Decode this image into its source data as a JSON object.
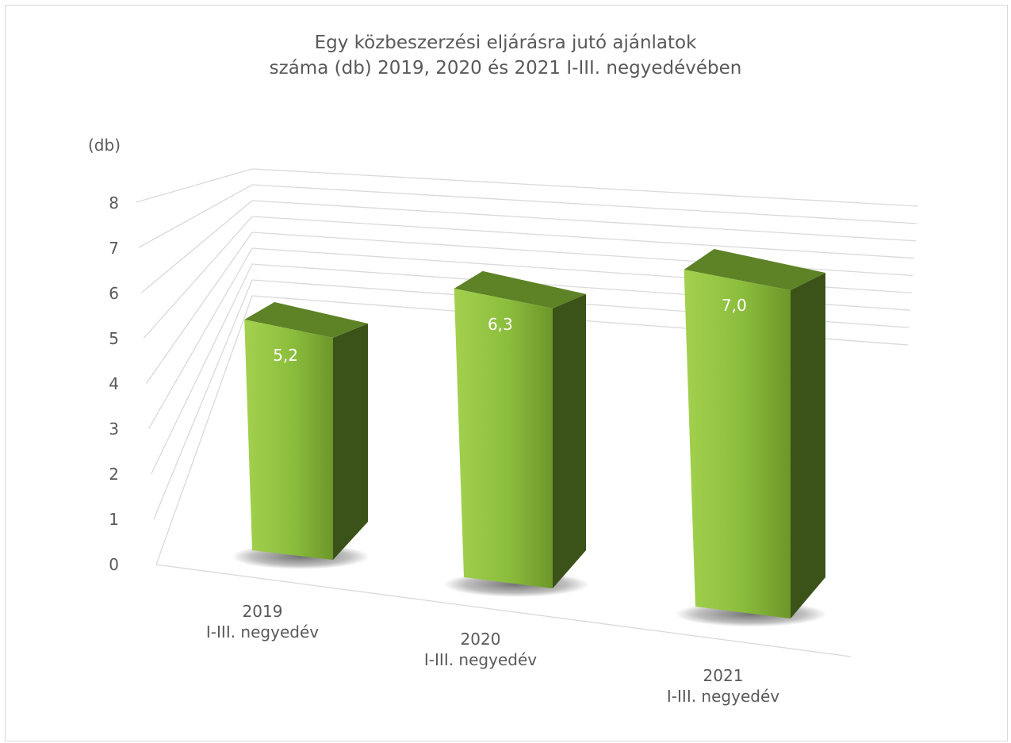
{
  "chart_data": {
    "type": "bar",
    "title_lines": [
      "Egy közbeszerzési eljárásra jutó ajánlatok",
      "száma (db) 2019, 2020 és 2021 I-III. negyedévében"
    ],
    "unit_label": "(db)",
    "categories": [
      [
        "2019",
        "I-III. negyedév"
      ],
      [
        "2020",
        "I-III. negyedév"
      ],
      [
        "2021",
        "I-III. negyedév"
      ]
    ],
    "values": [
      5.2,
      6.3,
      7.0
    ],
    "value_labels": [
      "5,2",
      "6,3",
      "7,0"
    ],
    "ylim": [
      0,
      8
    ],
    "yticks": [
      0,
      1,
      2,
      3,
      4,
      5,
      6,
      7,
      8
    ],
    "grid": true,
    "legend": "none",
    "colors": {
      "bar_front_light": "#9bcb45",
      "bar_front_dark": "#6f9a2a",
      "bar_side": "#3b5219",
      "bar_top": "#5e8226",
      "grid": "#d9d9d9",
      "text": "#595959"
    }
  }
}
